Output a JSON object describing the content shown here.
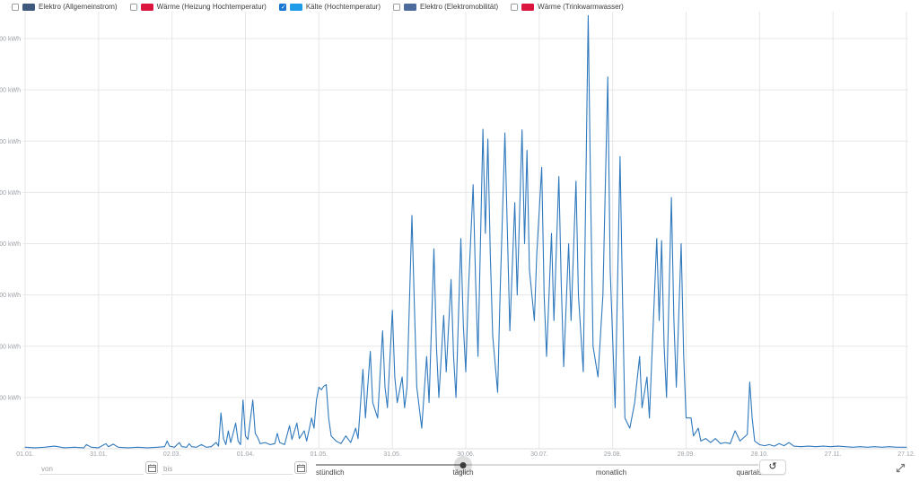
{
  "colors": {
    "line": "#3079bd",
    "grid": "#e7e7e7",
    "baseline": "#dcdcdc",
    "axis_text": "#9aa0a6",
    "checkbox_checked": "#1976d2",
    "slider_track": "#d9d9d9",
    "slider_track_active": "#9e9e9e",
    "slider_dot": "#3a3a3a"
  },
  "legend": {
    "items": [
      {
        "label": "Elektro (Allgemeinstrom)",
        "color": "#3d5a7d",
        "checked": false
      },
      {
        "label": "Wärme (Heizung Hochtemperatur)",
        "color": "#dc1440",
        "checked": false
      },
      {
        "label": "Kälte (Hochtemperatur)",
        "color": "#1e9be9",
        "checked": true
      },
      {
        "label": "Elektro (Elektromobilität)",
        "color": "#4c6a9b",
        "checked": false
      },
      {
        "label": "Wärme (Trinkwarmwasser)",
        "color": "#dc1440",
        "checked": false
      }
    ]
  },
  "chart_data": {
    "type": "line",
    "title": "",
    "xlabel": "",
    "ylabel": "kWh",
    "grid": true,
    "legend_position": "top-left checkboxes",
    "xlim_days": [
      0,
      360
    ],
    "ylim": [
      0,
      860
    ],
    "x_ticks": {
      "days": [
        0,
        30,
        60,
        90,
        120,
        150,
        180,
        210,
        240,
        270,
        300,
        330,
        360
      ],
      "labels": [
        "01.01.",
        "31.01.",
        "02.03.",
        "01.04.",
        "01.05.",
        "31.05.",
        "30.06.",
        "30.07.",
        "29.08.",
        "28.09.",
        "28.10.",
        "27.11.",
        "27.12."
      ]
    },
    "y_ticks": {
      "values": [
        100,
        200,
        300,
        400,
        500,
        600,
        700,
        800
      ],
      "unit": "kWh"
    },
    "series": [
      {
        "name": "Kälte (Hochtemperatur)",
        "color": "#3079bd",
        "unit": "kWh",
        "resolution": "täglich",
        "points_day_value": [
          [
            0,
            3
          ],
          [
            4,
            2
          ],
          [
            8,
            3
          ],
          [
            12,
            5
          ],
          [
            16,
            2
          ],
          [
            20,
            3
          ],
          [
            24,
            2
          ],
          [
            25,
            8
          ],
          [
            27,
            3
          ],
          [
            30,
            2
          ],
          [
            33,
            10
          ],
          [
            34,
            4
          ],
          [
            36,
            9
          ],
          [
            38,
            3
          ],
          [
            42,
            2
          ],
          [
            46,
            3
          ],
          [
            50,
            2
          ],
          [
            54,
            3
          ],
          [
            57,
            4
          ],
          [
            58,
            15
          ],
          [
            59,
            5
          ],
          [
            61,
            3
          ],
          [
            63,
            12
          ],
          [
            64,
            4
          ],
          [
            66,
            3
          ],
          [
            67,
            10
          ],
          [
            68,
            4
          ],
          [
            70,
            3
          ],
          [
            72,
            8
          ],
          [
            74,
            3
          ],
          [
            76,
            4
          ],
          [
            78,
            12
          ],
          [
            79,
            5
          ],
          [
            80,
            70
          ],
          [
            81,
            20
          ],
          [
            82,
            8
          ],
          [
            83,
            35
          ],
          [
            84,
            12
          ],
          [
            86,
            50
          ],
          [
            87,
            15
          ],
          [
            88,
            8
          ],
          [
            89,
            95
          ],
          [
            90,
            25
          ],
          [
            91,
            18
          ],
          [
            93,
            95
          ],
          [
            94,
            30
          ],
          [
            95,
            22
          ],
          [
            96,
            10
          ],
          [
            98,
            12
          ],
          [
            100,
            8
          ],
          [
            102,
            10
          ],
          [
            103,
            30
          ],
          [
            104,
            12
          ],
          [
            106,
            8
          ],
          [
            108,
            45
          ],
          [
            109,
            18
          ],
          [
            111,
            50
          ],
          [
            112,
            20
          ],
          [
            114,
            35
          ],
          [
            115,
            15
          ],
          [
            117,
            60
          ],
          [
            118,
            40
          ],
          [
            119,
            95
          ],
          [
            120,
            120
          ],
          [
            121,
            115
          ],
          [
            122,
            122
          ],
          [
            123,
            125
          ],
          [
            124,
            60
          ],
          [
            125,
            25
          ],
          [
            127,
            15
          ],
          [
            129,
            10
          ],
          [
            131,
            25
          ],
          [
            133,
            12
          ],
          [
            135,
            40
          ],
          [
            136,
            20
          ],
          [
            138,
            155
          ],
          [
            139,
            60
          ],
          [
            141,
            190
          ],
          [
            142,
            90
          ],
          [
            144,
            60
          ],
          [
            146,
            230
          ],
          [
            147,
            120
          ],
          [
            148,
            80
          ],
          [
            150,
            270
          ],
          [
            151,
            140
          ],
          [
            152,
            90
          ],
          [
            154,
            140
          ],
          [
            155,
            80
          ],
          [
            156,
            120
          ],
          [
            158,
            455
          ],
          [
            159,
            280
          ],
          [
            160,
            120
          ],
          [
            162,
            40
          ],
          [
            164,
            180
          ],
          [
            165,
            90
          ],
          [
            167,
            390
          ],
          [
            168,
            200
          ],
          [
            169,
            100
          ],
          [
            171,
            260
          ],
          [
            172,
            150
          ],
          [
            174,
            330
          ],
          [
            175,
            180
          ],
          [
            176,
            100
          ],
          [
            178,
            410
          ],
          [
            179,
            240
          ],
          [
            180,
            150
          ],
          [
            181,
            300
          ],
          [
            183,
            515
          ],
          [
            184,
            330
          ],
          [
            185,
            180
          ],
          [
            187,
            623
          ],
          [
            188,
            420
          ],
          [
            189,
            604
          ],
          [
            190,
            380
          ],
          [
            191,
            220
          ],
          [
            193,
            110
          ],
          [
            194,
            300
          ],
          [
            196,
            616
          ],
          [
            197,
            420
          ],
          [
            198,
            230
          ],
          [
            200,
            480
          ],
          [
            201,
            300
          ],
          [
            203,
            622
          ],
          [
            204,
            400
          ],
          [
            205,
            582
          ],
          [
            206,
            350
          ],
          [
            208,
            250
          ],
          [
            209,
            380
          ],
          [
            211,
            549
          ],
          [
            212,
            300
          ],
          [
            213,
            180
          ],
          [
            215,
            420
          ],
          [
            216,
            250
          ],
          [
            218,
            531
          ],
          [
            219,
            320
          ],
          [
            220,
            160
          ],
          [
            222,
            400
          ],
          [
            223,
            250
          ],
          [
            225,
            522
          ],
          [
            226,
            300
          ],
          [
            228,
            150
          ],
          [
            230,
            845
          ],
          [
            231,
            500
          ],
          [
            232,
            200
          ],
          [
            234,
            140
          ],
          [
            236,
            300
          ],
          [
            238,
            725
          ],
          [
            239,
            350
          ],
          [
            241,
            80
          ],
          [
            243,
            570
          ],
          [
            244,
            300
          ],
          [
            245,
            60
          ],
          [
            247,
            40
          ],
          [
            249,
            90
          ],
          [
            251,
            180
          ],
          [
            252,
            80
          ],
          [
            254,
            140
          ],
          [
            255,
            60
          ],
          [
            258,
            410
          ],
          [
            259,
            250
          ],
          [
            260,
            406
          ],
          [
            261,
            200
          ],
          [
            262,
            100
          ],
          [
            264,
            490
          ],
          [
            265,
            250
          ],
          [
            266,
            120
          ],
          [
            268,
            400
          ],
          [
            269,
            180
          ],
          [
            270,
            60
          ],
          [
            272,
            60
          ],
          [
            273,
            25
          ],
          [
            275,
            40
          ],
          [
            276,
            15
          ],
          [
            278,
            20
          ],
          [
            280,
            12
          ],
          [
            282,
            20
          ],
          [
            284,
            10
          ],
          [
            286,
            12
          ],
          [
            288,
            10
          ],
          [
            290,
            35
          ],
          [
            292,
            15
          ],
          [
            295,
            28
          ],
          [
            296,
            130
          ],
          [
            297,
            60
          ],
          [
            298,
            15
          ],
          [
            300,
            8
          ],
          [
            302,
            6
          ],
          [
            304,
            8
          ],
          [
            306,
            5
          ],
          [
            308,
            10
          ],
          [
            310,
            6
          ],
          [
            312,
            12
          ],
          [
            314,
            5
          ],
          [
            317,
            4
          ],
          [
            320,
            5
          ],
          [
            323,
            4
          ],
          [
            326,
            5
          ],
          [
            329,
            4
          ],
          [
            332,
            5
          ],
          [
            335,
            4
          ],
          [
            338,
            3
          ],
          [
            341,
            4
          ],
          [
            344,
            3
          ],
          [
            347,
            4
          ],
          [
            350,
            3
          ],
          [
            353,
            4
          ],
          [
            356,
            3
          ],
          [
            360,
            3
          ]
        ]
      }
    ]
  },
  "controls": {
    "von": {
      "placeholder": "von",
      "value": ""
    },
    "bis": {
      "placeholder": "bis",
      "value": ""
    },
    "slider": {
      "labels": [
        "stündlich",
        "täglich",
        "monatlich",
        "quartalsweise"
      ],
      "selected": "täglich",
      "selected_index": 1
    },
    "reset_icon": "↺"
  }
}
